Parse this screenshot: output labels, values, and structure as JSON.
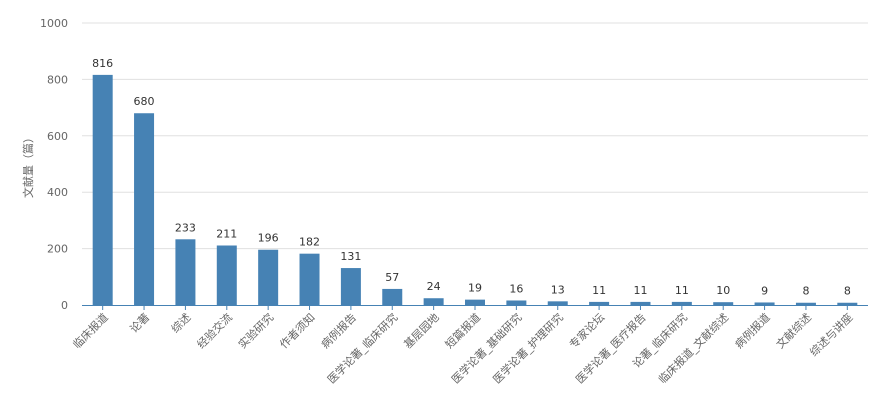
{
  "chart_data": {
    "type": "bar",
    "ylabel": "文献量（篇）",
    "ylim": [
      0,
      1000
    ],
    "yticks": [
      0,
      200,
      400,
      600,
      800,
      1000
    ],
    "grid": true,
    "categories": [
      "临床报道",
      "论著",
      "综述",
      "经验交流",
      "实验研究",
      "作者须知",
      "病例报告",
      "医学论著_临床研究",
      "基层园地",
      "短篇报道",
      "医学论著_基础研究",
      "医学论著_护理研究",
      "专家论坛",
      "医学论著_医疗报告",
      "论著_临床研究",
      "临床报道_文献综述",
      "病例报道",
      "文献综述",
      "综述与讲座"
    ],
    "values": [
      816,
      680,
      233,
      211,
      196,
      182,
      131,
      57,
      24,
      19,
      16,
      13,
      11,
      11,
      11,
      10,
      9,
      8,
      8
    ],
    "bar_color": "#4682B4",
    "grid_color": "#e0e0e0",
    "axis_color": "#4682B4"
  }
}
